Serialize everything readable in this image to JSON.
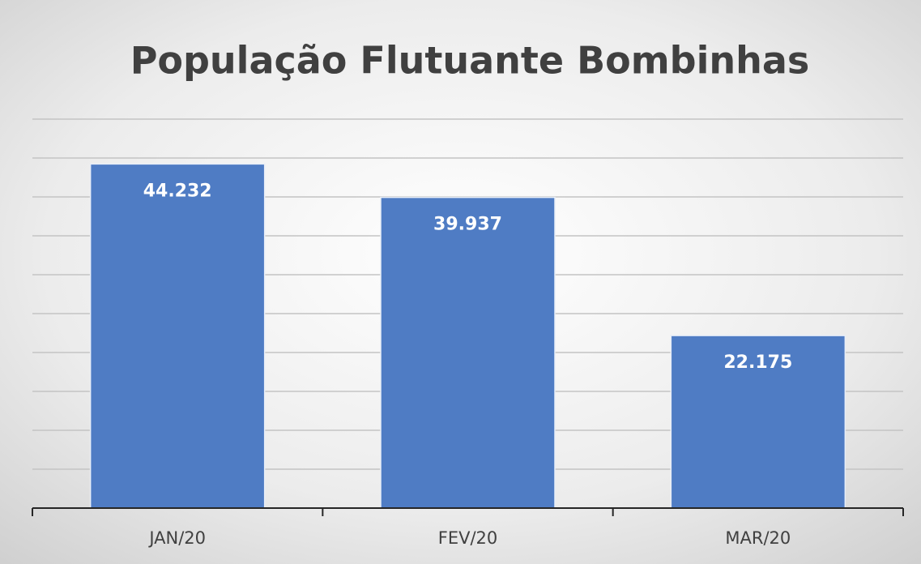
{
  "chart_data": {
    "type": "bar",
    "title": "População Flutuante Bombinhas",
    "categories": [
      "JAN/20",
      "FEV/20",
      "MAR/20"
    ],
    "values": [
      44232,
      39937,
      22175
    ],
    "value_labels": [
      "44.232",
      "39.937",
      "22.175"
    ],
    "color": "#4f7cc4",
    "ylim": [
      0,
      50000
    ],
    "yticks": [
      0,
      5000,
      10000,
      15000,
      20000,
      25000,
      30000,
      35000,
      40000,
      45000,
      50000
    ],
    "grid": true
  }
}
